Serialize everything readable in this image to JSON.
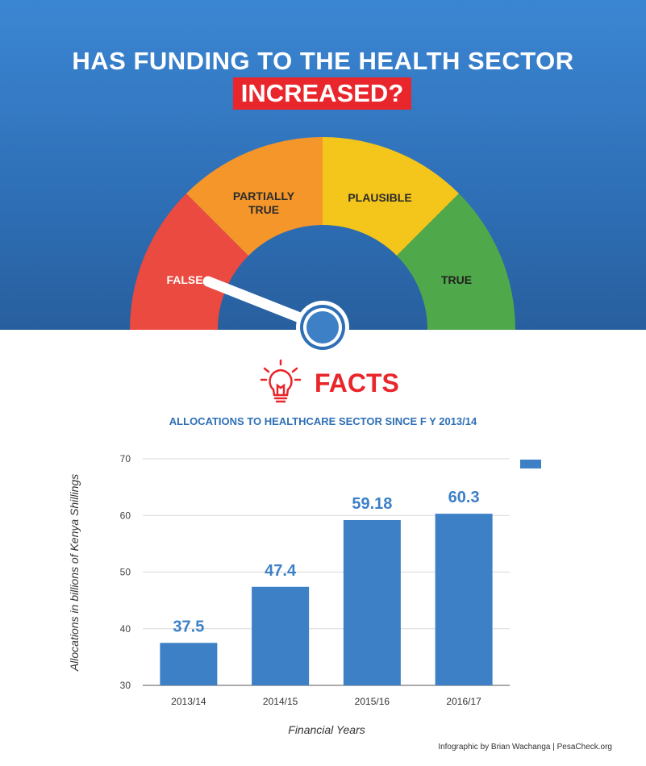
{
  "header": {
    "title_line1": "HAS FUNDING TO THE HEALTH SECTOR",
    "title_line2": "INCREASED?"
  },
  "gauge": {
    "segments": [
      {
        "label": "FALSE",
        "color": "#ea4a3f"
      },
      {
        "label": "PARTIALLY TRUE",
        "color": "#f5962a"
      },
      {
        "label": "PLAUSIBLE",
        "color": "#f4c51b"
      },
      {
        "label": "TRUE",
        "color": "#4fa84a"
      }
    ],
    "verdict": "FALSE"
  },
  "facts": {
    "label": "FACTS",
    "icon": "lightbulb-icon"
  },
  "chart_data": {
    "type": "bar",
    "title": "ALLOCATIONS TO HEALTHCARE SECTOR SINCE F Y 2013/14",
    "categories": [
      "2013/14",
      "2014/15",
      "2015/16",
      "2016/17"
    ],
    "values": [
      37.5,
      47.4,
      59.18,
      60.3
    ],
    "value_labels": [
      "37.5",
      "47.4",
      "59.18",
      "60.3"
    ],
    "xlabel": "Financial Years",
    "ylabel": "Allocations in billions of Kenya Shillings",
    "ylim": [
      30,
      70
    ],
    "yticks": [
      30,
      40,
      50,
      60,
      70
    ],
    "grid": true,
    "bar_color": "#3d80c6",
    "legend": "top-right"
  },
  "credit": "Infographic by Brian Wachanga | PesaCheck.org",
  "colors": {
    "accent_red": "#e8262b",
    "blue": "#2e6fb6"
  }
}
